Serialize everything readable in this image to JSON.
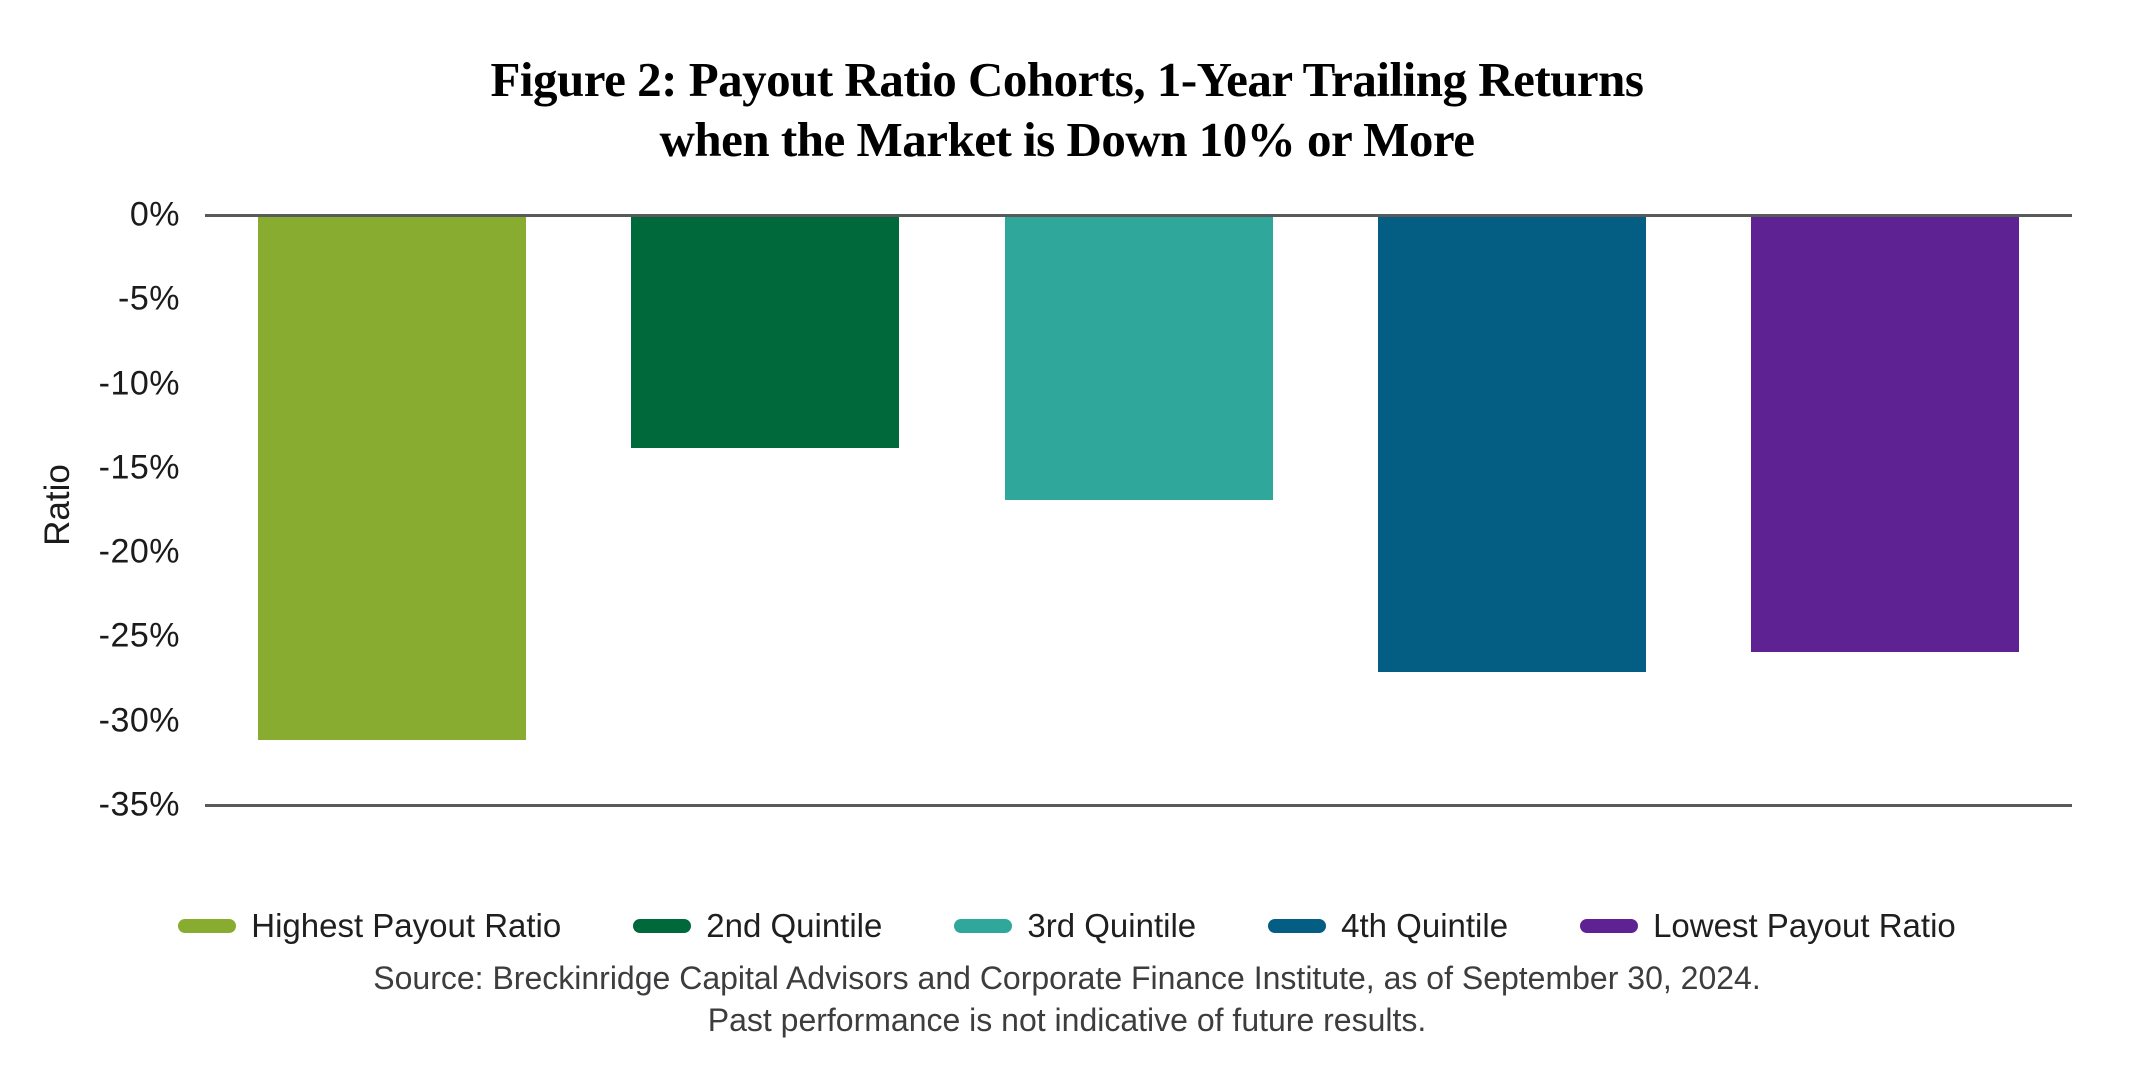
{
  "figure": {
    "title_line1": "Figure 2: Payout Ratio Cohorts, 1-Year Trailing Returns",
    "title_line2": "when the Market is Down 10% or More"
  },
  "chart_data": {
    "type": "bar",
    "title": "Figure 2: Payout Ratio Cohorts, 1-Year Trailing Returns when the Market is Down 10% or More",
    "xlabel": "",
    "ylabel": "Ratio",
    "categories": [
      "Highest Payout Ratio",
      "2nd Quintile",
      "3rd Quintile",
      "4th Quintile",
      "Lowest Payout Ratio"
    ],
    "values": [
      -31.0,
      -13.7,
      -16.8,
      -27.0,
      -25.8
    ],
    "bar_colors": [
      "#87AC2F",
      "#00693B",
      "#2FA79A",
      "#045D83",
      "#5F2292"
    ],
    "ylim": [
      -35,
      0
    ],
    "ytick_step": -5,
    "ytick_labels": [
      "0%",
      "-5%",
      "-10%",
      "-15%",
      "-20%",
      "-25%",
      "-30%",
      "-35%"
    ],
    "grid": false,
    "legend_position": "bottom"
  },
  "footer": {
    "source": "Source: Breckinridge Capital Advisors and Corporate Finance Institute, as of September 30, 2024.",
    "disclaimer": "Past performance is not indicative of future results."
  },
  "colors": {
    "background": "#FFFFFF",
    "axis_line": "#58595B",
    "title_text": "#000000",
    "tick_text": "#1B1B1B",
    "legend_text": "#1F1F1F",
    "footer_text": "#3D3D3F"
  }
}
